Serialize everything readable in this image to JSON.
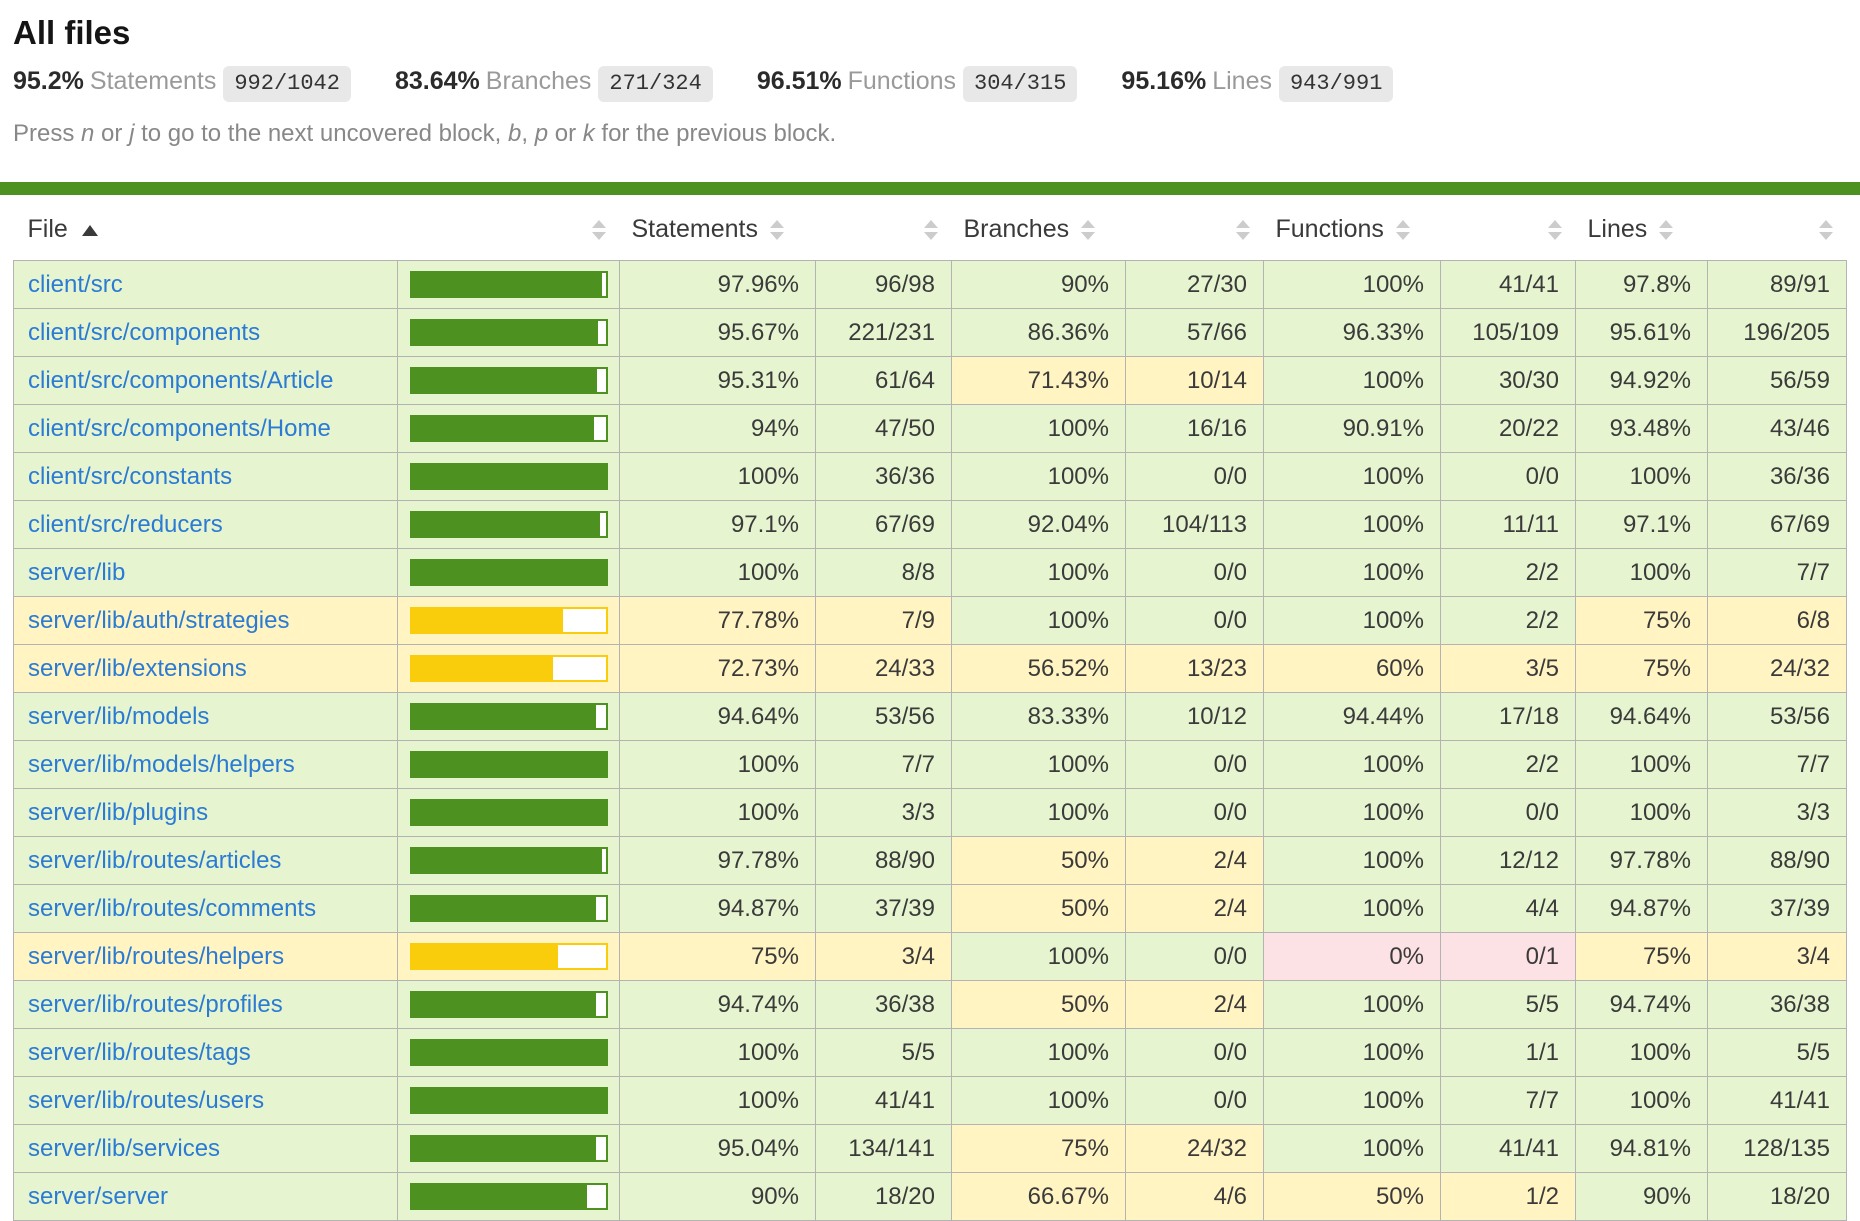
{
  "page": {
    "title": "All files"
  },
  "summary": {
    "metrics": [
      {
        "pct": "95.2%",
        "label": "Statements",
        "fraction": "992/1042"
      },
      {
        "pct": "83.64%",
        "label": "Branches",
        "fraction": "271/324"
      },
      {
        "pct": "96.51%",
        "label": "Functions",
        "fraction": "304/315"
      },
      {
        "pct": "95.16%",
        "label": "Lines",
        "fraction": "943/991"
      }
    ]
  },
  "hint": {
    "parts": [
      {
        "text": "Press ",
        "em": false
      },
      {
        "text": "n",
        "em": true
      },
      {
        "text": " or ",
        "em": false
      },
      {
        "text": "j",
        "em": true
      },
      {
        "text": " to go to the next uncovered block, ",
        "em": false
      },
      {
        "text": "b",
        "em": true
      },
      {
        "text": ", ",
        "em": false
      },
      {
        "text": "p",
        "em": true
      },
      {
        "text": " or ",
        "em": false
      },
      {
        "text": "k",
        "em": true
      },
      {
        "text": " for the previous block.",
        "em": false
      }
    ]
  },
  "colors": {
    "status_line": "#4d9221",
    "bar_green": "#4d9221",
    "bar_yellow": "#f9cd0b",
    "high_bg": "#e6f5d0",
    "medium_bg": "#fff4c2",
    "low_bg": "#fce1e5",
    "link_blue": "#2b7bd4"
  },
  "table": {
    "headers": {
      "file": "File",
      "statements": "Statements",
      "branches": "Branches",
      "functions": "Functions",
      "lines": "Lines"
    },
    "sort": {
      "column": "file",
      "direction": "asc"
    },
    "rows": [
      {
        "file": "client/src",
        "bar_pct": 97.96,
        "level": "high",
        "statements": {
          "pct": "97.96%",
          "abs": "96/98",
          "level": "high"
        },
        "branches": {
          "pct": "90%",
          "abs": "27/30",
          "level": "high"
        },
        "functions": {
          "pct": "100%",
          "abs": "41/41",
          "level": "high"
        },
        "lines": {
          "pct": "97.8%",
          "abs": "89/91",
          "level": "high"
        }
      },
      {
        "file": "client/src/components",
        "bar_pct": 95.67,
        "level": "high",
        "statements": {
          "pct": "95.67%",
          "abs": "221/231",
          "level": "high"
        },
        "branches": {
          "pct": "86.36%",
          "abs": "57/66",
          "level": "high"
        },
        "functions": {
          "pct": "96.33%",
          "abs": "105/109",
          "level": "high"
        },
        "lines": {
          "pct": "95.61%",
          "abs": "196/205",
          "level": "high"
        }
      },
      {
        "file": "client/src/components/Article",
        "bar_pct": 95.31,
        "level": "high",
        "statements": {
          "pct": "95.31%",
          "abs": "61/64",
          "level": "high"
        },
        "branches": {
          "pct": "71.43%",
          "abs": "10/14",
          "level": "medium"
        },
        "functions": {
          "pct": "100%",
          "abs": "30/30",
          "level": "high"
        },
        "lines": {
          "pct": "94.92%",
          "abs": "56/59",
          "level": "high"
        }
      },
      {
        "file": "client/src/components/Home",
        "bar_pct": 94,
        "level": "high",
        "statements": {
          "pct": "94%",
          "abs": "47/50",
          "level": "high"
        },
        "branches": {
          "pct": "100%",
          "abs": "16/16",
          "level": "high"
        },
        "functions": {
          "pct": "90.91%",
          "abs": "20/22",
          "level": "high"
        },
        "lines": {
          "pct": "93.48%",
          "abs": "43/46",
          "level": "high"
        }
      },
      {
        "file": "client/src/constants",
        "bar_pct": 100,
        "level": "high",
        "statements": {
          "pct": "100%",
          "abs": "36/36",
          "level": "high"
        },
        "branches": {
          "pct": "100%",
          "abs": "0/0",
          "level": "high"
        },
        "functions": {
          "pct": "100%",
          "abs": "0/0",
          "level": "high"
        },
        "lines": {
          "pct": "100%",
          "abs": "36/36",
          "level": "high"
        }
      },
      {
        "file": "client/src/reducers",
        "bar_pct": 97.1,
        "level": "high",
        "statements": {
          "pct": "97.1%",
          "abs": "67/69",
          "level": "high"
        },
        "branches": {
          "pct": "92.04%",
          "abs": "104/113",
          "level": "high"
        },
        "functions": {
          "pct": "100%",
          "abs": "11/11",
          "level": "high"
        },
        "lines": {
          "pct": "97.1%",
          "abs": "67/69",
          "level": "high"
        }
      },
      {
        "file": "server/lib",
        "bar_pct": 100,
        "level": "high",
        "statements": {
          "pct": "100%",
          "abs": "8/8",
          "level": "high"
        },
        "branches": {
          "pct": "100%",
          "abs": "0/0",
          "level": "high"
        },
        "functions": {
          "pct": "100%",
          "abs": "2/2",
          "level": "high"
        },
        "lines": {
          "pct": "100%",
          "abs": "7/7",
          "level": "high"
        }
      },
      {
        "file": "server/lib/auth/strategies",
        "bar_pct": 77.78,
        "level": "medium",
        "statements": {
          "pct": "77.78%",
          "abs": "7/9",
          "level": "medium"
        },
        "branches": {
          "pct": "100%",
          "abs": "0/0",
          "level": "high"
        },
        "functions": {
          "pct": "100%",
          "abs": "2/2",
          "level": "high"
        },
        "lines": {
          "pct": "75%",
          "abs": "6/8",
          "level": "medium"
        }
      },
      {
        "file": "server/lib/extensions",
        "bar_pct": 72.73,
        "level": "medium",
        "statements": {
          "pct": "72.73%",
          "abs": "24/33",
          "level": "medium"
        },
        "branches": {
          "pct": "56.52%",
          "abs": "13/23",
          "level": "medium"
        },
        "functions": {
          "pct": "60%",
          "abs": "3/5",
          "level": "medium"
        },
        "lines": {
          "pct": "75%",
          "abs": "24/32",
          "level": "medium"
        }
      },
      {
        "file": "server/lib/models",
        "bar_pct": 94.64,
        "level": "high",
        "statements": {
          "pct": "94.64%",
          "abs": "53/56",
          "level": "high"
        },
        "branches": {
          "pct": "83.33%",
          "abs": "10/12",
          "level": "high"
        },
        "functions": {
          "pct": "94.44%",
          "abs": "17/18",
          "level": "high"
        },
        "lines": {
          "pct": "94.64%",
          "abs": "53/56",
          "level": "high"
        }
      },
      {
        "file": "server/lib/models/helpers",
        "bar_pct": 100,
        "level": "high",
        "statements": {
          "pct": "100%",
          "abs": "7/7",
          "level": "high"
        },
        "branches": {
          "pct": "100%",
          "abs": "0/0",
          "level": "high"
        },
        "functions": {
          "pct": "100%",
          "abs": "2/2",
          "level": "high"
        },
        "lines": {
          "pct": "100%",
          "abs": "7/7",
          "level": "high"
        }
      },
      {
        "file": "server/lib/plugins",
        "bar_pct": 100,
        "level": "high",
        "statements": {
          "pct": "100%",
          "abs": "3/3",
          "level": "high"
        },
        "branches": {
          "pct": "100%",
          "abs": "0/0",
          "level": "high"
        },
        "functions": {
          "pct": "100%",
          "abs": "0/0",
          "level": "high"
        },
        "lines": {
          "pct": "100%",
          "abs": "3/3",
          "level": "high"
        }
      },
      {
        "file": "server/lib/routes/articles",
        "bar_pct": 97.78,
        "level": "high",
        "statements": {
          "pct": "97.78%",
          "abs": "88/90",
          "level": "high"
        },
        "branches": {
          "pct": "50%",
          "abs": "2/4",
          "level": "medium"
        },
        "functions": {
          "pct": "100%",
          "abs": "12/12",
          "level": "high"
        },
        "lines": {
          "pct": "97.78%",
          "abs": "88/90",
          "level": "high"
        }
      },
      {
        "file": "server/lib/routes/comments",
        "bar_pct": 94.87,
        "level": "high",
        "statements": {
          "pct": "94.87%",
          "abs": "37/39",
          "level": "high"
        },
        "branches": {
          "pct": "50%",
          "abs": "2/4",
          "level": "medium"
        },
        "functions": {
          "pct": "100%",
          "abs": "4/4",
          "level": "high"
        },
        "lines": {
          "pct": "94.87%",
          "abs": "37/39",
          "level": "high"
        }
      },
      {
        "file": "server/lib/routes/helpers",
        "bar_pct": 75,
        "level": "medium",
        "statements": {
          "pct": "75%",
          "abs": "3/4",
          "level": "medium"
        },
        "branches": {
          "pct": "100%",
          "abs": "0/0",
          "level": "high"
        },
        "functions": {
          "pct": "0%",
          "abs": "0/1",
          "level": "low"
        },
        "lines": {
          "pct": "75%",
          "abs": "3/4",
          "level": "medium"
        }
      },
      {
        "file": "server/lib/routes/profiles",
        "bar_pct": 94.74,
        "level": "high",
        "statements": {
          "pct": "94.74%",
          "abs": "36/38",
          "level": "high"
        },
        "branches": {
          "pct": "50%",
          "abs": "2/4",
          "level": "medium"
        },
        "functions": {
          "pct": "100%",
          "abs": "5/5",
          "level": "high"
        },
        "lines": {
          "pct": "94.74%",
          "abs": "36/38",
          "level": "high"
        }
      },
      {
        "file": "server/lib/routes/tags",
        "bar_pct": 100,
        "level": "high",
        "statements": {
          "pct": "100%",
          "abs": "5/5",
          "level": "high"
        },
        "branches": {
          "pct": "100%",
          "abs": "0/0",
          "level": "high"
        },
        "functions": {
          "pct": "100%",
          "abs": "1/1",
          "level": "high"
        },
        "lines": {
          "pct": "100%",
          "abs": "5/5",
          "level": "high"
        }
      },
      {
        "file": "server/lib/routes/users",
        "bar_pct": 100,
        "level": "high",
        "statements": {
          "pct": "100%",
          "abs": "41/41",
          "level": "high"
        },
        "branches": {
          "pct": "100%",
          "abs": "0/0",
          "level": "high"
        },
        "functions": {
          "pct": "100%",
          "abs": "7/7",
          "level": "high"
        },
        "lines": {
          "pct": "100%",
          "abs": "41/41",
          "level": "high"
        }
      },
      {
        "file": "server/lib/services",
        "bar_pct": 95.04,
        "level": "high",
        "statements": {
          "pct": "95.04%",
          "abs": "134/141",
          "level": "high"
        },
        "branches": {
          "pct": "75%",
          "abs": "24/32",
          "level": "medium"
        },
        "functions": {
          "pct": "100%",
          "abs": "41/41",
          "level": "high"
        },
        "lines": {
          "pct": "94.81%",
          "abs": "128/135",
          "level": "high"
        }
      },
      {
        "file": "server/server",
        "bar_pct": 90,
        "level": "high",
        "statements": {
          "pct": "90%",
          "abs": "18/20",
          "level": "high"
        },
        "branches": {
          "pct": "66.67%",
          "abs": "4/6",
          "level": "medium"
        },
        "functions": {
          "pct": "50%",
          "abs": "1/2",
          "level": "medium"
        },
        "lines": {
          "pct": "90%",
          "abs": "18/20",
          "level": "high"
        }
      }
    ]
  }
}
